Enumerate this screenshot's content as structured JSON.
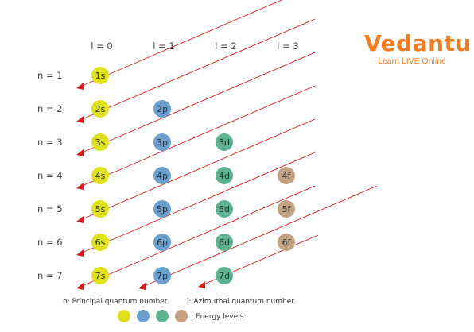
{
  "brand": {
    "name": "Vedantu",
    "tagline": "Learn LIVE Online",
    "color": "#f47b20"
  },
  "diagram": {
    "column_headers": [
      "l = 0",
      "l = 1",
      "l = 2",
      "l = 3"
    ],
    "row_labels": [
      "n = 1",
      "n = 2",
      "n = 3",
      "n = 4",
      "n = 5",
      "n = 6",
      "n = 7"
    ],
    "orbitals": [
      [
        "1s"
      ],
      [
        "2s",
        "2p"
      ],
      [
        "3s",
        "3p",
        "3d"
      ],
      [
        "4s",
        "4p",
        "4d",
        "4f"
      ],
      [
        "5s",
        "5p",
        "5d",
        "5f"
      ],
      [
        "6s",
        "6p",
        "6d",
        "6f"
      ],
      [
        "7s",
        "7p",
        "7d"
      ]
    ],
    "subshell_colors": {
      "s": "#dfe01e",
      "p": "#6a9fce",
      "d": "#5db391",
      "f": "#c2a282"
    },
    "arrow_color": "#d21f1f",
    "diagonal_count": 8
  },
  "legend": {
    "n_text": "n: Principal quantum number",
    "l_text": "l: Azimuthal quantum number",
    "energy_text": ": Energy levels",
    "swatches": [
      "s",
      "p",
      "d",
      "f"
    ]
  }
}
